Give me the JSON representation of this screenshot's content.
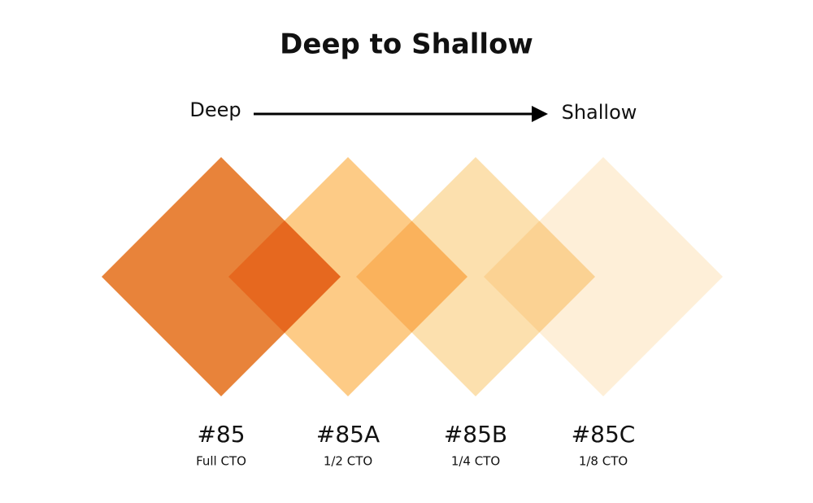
{
  "title": "Deep to Shallow",
  "arrow": {
    "start": "Deep",
    "end": "Shallow"
  },
  "items": [
    {
      "code": "#85",
      "label": "Full CTO"
    },
    {
      "code": "#85A",
      "label": "1/2 CTO"
    },
    {
      "code": "#85B",
      "label": "1/4 CTO"
    },
    {
      "code": "#85C",
      "label": "1/8 CTO"
    }
  ]
}
